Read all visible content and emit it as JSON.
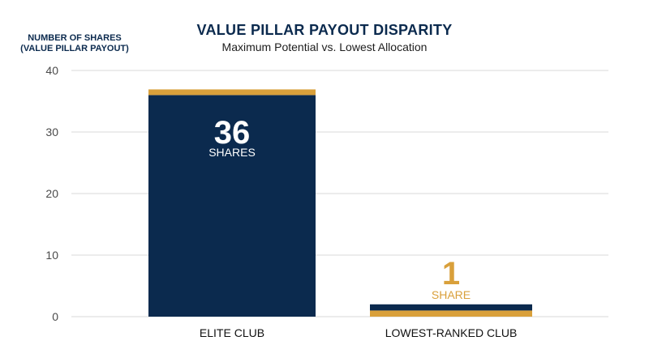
{
  "chart_data": {
    "type": "bar",
    "title": "VALUE PILLAR PAYOUT DISPARITY",
    "subtitle": "Maximum Potential vs. Lowest Allocation",
    "ylabel_lines": [
      "NUMBER OF SHARES",
      "(VALUE PILLAR PAYOUT)"
    ],
    "ylim": [
      0,
      40
    ],
    "yticks": [
      "0",
      "10",
      "20",
      "30",
      "40"
    ],
    "categories": [
      "ELITE CLUB",
      "LOWEST-RANKED CLUB"
    ],
    "values": [
      36,
      1
    ],
    "bar_labels": [
      {
        "number": "36",
        "unit": "SHARES"
      },
      {
        "number": "1",
        "unit": "SHARE"
      }
    ],
    "grid": true,
    "colors": {
      "bar": "#0b2a4e",
      "accent": "#d9a03b",
      "grid": "#d9d9d9",
      "label_on_bar": "#ffffff",
      "label_accent": "#d9a03b"
    }
  }
}
